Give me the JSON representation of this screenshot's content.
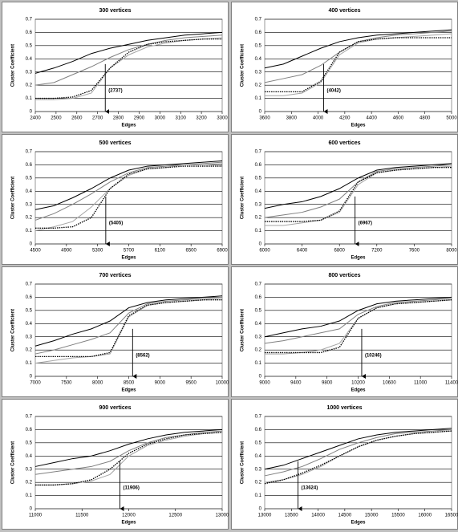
{
  "chart_data": [
    {
      "type": "line",
      "title": "300 vertices",
      "x_label": "Edges",
      "y_label": "Cluster Coefficient",
      "x": [
        2400,
        2490,
        2580,
        2670,
        2760,
        2850,
        2940,
        3030,
        3120,
        3210,
        3300
      ],
      "xlim": [
        2400,
        3300
      ],
      "xticks": [
        2400,
        2500,
        2600,
        2700,
        2800,
        2900,
        3000,
        3100,
        3200,
        3300
      ],
      "ylim": [
        0,
        0.7
      ],
      "yticks": [
        0,
        0.1,
        0.2,
        0.3,
        0.4,
        0.5,
        0.6,
        0.7
      ],
      "grid": true,
      "series": [
        {
          "color": "#000000",
          "style": "solid",
          "values": [
            0.29,
            0.33,
            0.38,
            0.44,
            0.48,
            0.51,
            0.54,
            0.56,
            0.58,
            0.59,
            0.6
          ]
        },
        {
          "color": "#808080",
          "style": "solid",
          "values": [
            0.2,
            0.22,
            0.28,
            0.34,
            0.41,
            0.47,
            0.51,
            0.54,
            0.56,
            0.57,
            0.58
          ]
        },
        {
          "color": "#a6a6a6",
          "style": "solid",
          "values": [
            0.09,
            0.09,
            0.1,
            0.14,
            0.33,
            0.43,
            0.49,
            0.52,
            0.54,
            0.55,
            0.56
          ]
        },
        {
          "color": "#000000",
          "style": "dotted",
          "values": [
            0.1,
            0.1,
            0.11,
            0.16,
            0.33,
            0.45,
            0.51,
            0.53,
            0.54,
            0.55,
            0.55
          ]
        }
      ],
      "annotations": [
        {
          "label": "(2737)",
          "value": 2737
        }
      ]
    },
    {
      "type": "line",
      "title": "400 vertices",
      "x_label": "Edges",
      "y_label": "Cluster Coefficient",
      "x": [
        3600,
        3740,
        3880,
        4020,
        4160,
        4300,
        4440,
        4580,
        4720,
        4860,
        5000
      ],
      "xlim": [
        3600,
        5000
      ],
      "xticks": [
        3600,
        3800,
        4000,
        4200,
        4400,
        4600,
        4800,
        5000
      ],
      "ylim": [
        0,
        0.7
      ],
      "yticks": [
        0,
        0.1,
        0.2,
        0.3,
        0.4,
        0.5,
        0.6,
        0.7
      ],
      "grid": true,
      "series": [
        {
          "color": "#000000",
          "style": "solid",
          "values": [
            0.33,
            0.36,
            0.42,
            0.48,
            0.53,
            0.56,
            0.58,
            0.59,
            0.6,
            0.61,
            0.62
          ]
        },
        {
          "color": "#808080",
          "style": "solid",
          "values": [
            0.22,
            0.25,
            0.28,
            0.35,
            0.45,
            0.53,
            0.56,
            0.58,
            0.59,
            0.6,
            0.61
          ]
        },
        {
          "color": "#a6a6a6",
          "style": "solid",
          "values": [
            0.12,
            0.12,
            0.14,
            0.22,
            0.43,
            0.52,
            0.55,
            0.56,
            0.57,
            0.58,
            0.59
          ]
        },
        {
          "color": "#000000",
          "style": "dotted",
          "values": [
            0.15,
            0.15,
            0.15,
            0.23,
            0.45,
            0.53,
            0.55,
            0.56,
            0.56,
            0.56,
            0.56
          ]
        }
      ],
      "annotations": [
        {
          "label": "(4042)",
          "value": 4042
        }
      ]
    },
    {
      "type": "line",
      "title": "500 vertices",
      "x_label": "Edges",
      "y_label": "Cluster Coefficient",
      "x": [
        4500,
        4740,
        4980,
        5220,
        5460,
        5700,
        5940,
        6180,
        6420,
        6660,
        6900
      ],
      "xlim": [
        4500,
        6900
      ],
      "xticks": [
        4500,
        4900,
        5300,
        5700,
        6100,
        6500,
        6900
      ],
      "ylim": [
        0,
        0.7
      ],
      "yticks": [
        0,
        0.1,
        0.2,
        0.3,
        0.4,
        0.5,
        0.6,
        0.7
      ],
      "grid": true,
      "series": [
        {
          "color": "#000000",
          "style": "solid",
          "values": [
            0.26,
            0.29,
            0.35,
            0.42,
            0.5,
            0.56,
            0.59,
            0.6,
            0.61,
            0.62,
            0.63
          ]
        },
        {
          "color": "#808080",
          "style": "solid",
          "values": [
            0.18,
            0.23,
            0.3,
            0.38,
            0.47,
            0.54,
            0.58,
            0.59,
            0.6,
            0.61,
            0.62
          ]
        },
        {
          "color": "#a6a6a6",
          "style": "solid",
          "values": [
            0.1,
            0.13,
            0.17,
            0.28,
            0.42,
            0.52,
            0.57,
            0.58,
            0.6,
            0.6,
            0.61
          ]
        },
        {
          "color": "#000000",
          "style": "dotted",
          "values": [
            0.12,
            0.12,
            0.13,
            0.2,
            0.42,
            0.53,
            0.57,
            0.58,
            0.59,
            0.59,
            0.59
          ]
        }
      ],
      "annotations": [
        {
          "label": "(5405)",
          "value": 5405
        }
      ]
    },
    {
      "type": "line",
      "title": "600 vertices",
      "x_label": "Edges",
      "y_label": "Cluster Coefficient",
      "x": [
        6000,
        6200,
        6400,
        6600,
        6800,
        7000,
        7200,
        7400,
        7600,
        7800,
        8000
      ],
      "xlim": [
        6000,
        8000
      ],
      "xticks": [
        6000,
        6400,
        6800,
        7200,
        7600,
        8000
      ],
      "ylim": [
        0,
        0.7
      ],
      "yticks": [
        0,
        0.1,
        0.2,
        0.3,
        0.4,
        0.5,
        0.6,
        0.7
      ],
      "grid": true,
      "series": [
        {
          "color": "#000000",
          "style": "solid",
          "values": [
            0.27,
            0.3,
            0.32,
            0.36,
            0.42,
            0.5,
            0.56,
            0.58,
            0.59,
            0.6,
            0.61
          ]
        },
        {
          "color": "#808080",
          "style": "solid",
          "values": [
            0.2,
            0.22,
            0.24,
            0.28,
            0.34,
            0.47,
            0.55,
            0.57,
            0.58,
            0.59,
            0.6
          ]
        },
        {
          "color": "#a6a6a6",
          "style": "solid",
          "values": [
            0.14,
            0.14,
            0.16,
            0.18,
            0.24,
            0.45,
            0.54,
            0.56,
            0.57,
            0.58,
            0.59
          ]
        },
        {
          "color": "#000000",
          "style": "dotted",
          "values": [
            0.17,
            0.17,
            0.17,
            0.18,
            0.25,
            0.47,
            0.54,
            0.56,
            0.57,
            0.58,
            0.58
          ]
        }
      ],
      "annotations": [
        {
          "label": "(6967)",
          "value": 6967
        }
      ]
    },
    {
      "type": "line",
      "title": "700 vertices",
      "x_label": "Edges",
      "y_label": "Cluster Coefficient",
      "x": [
        7000,
        7300,
        7600,
        7900,
        8200,
        8500,
        8800,
        9100,
        9400,
        9700,
        10000
      ],
      "xlim": [
        7000,
        10000
      ],
      "xticks": [
        7000,
        7500,
        8000,
        8500,
        9000,
        9500,
        10000
      ],
      "ylim": [
        0,
        0.7
      ],
      "yticks": [
        0,
        0.1,
        0.2,
        0.3,
        0.4,
        0.5,
        0.6,
        0.7
      ],
      "grid": true,
      "series": [
        {
          "color": "#000000",
          "style": "solid",
          "values": [
            0.23,
            0.27,
            0.32,
            0.36,
            0.42,
            0.52,
            0.56,
            0.58,
            0.59,
            0.6,
            0.61
          ]
        },
        {
          "color": "#808080",
          "style": "solid",
          "values": [
            0.17,
            0.2,
            0.24,
            0.28,
            0.33,
            0.48,
            0.55,
            0.57,
            0.58,
            0.59,
            0.6
          ]
        },
        {
          "color": "#a6a6a6",
          "style": "solid",
          "values": [
            0.1,
            0.12,
            0.14,
            0.15,
            0.17,
            0.45,
            0.54,
            0.56,
            0.57,
            0.58,
            0.59
          ]
        },
        {
          "color": "#000000",
          "style": "dotted",
          "values": [
            0.15,
            0.15,
            0.15,
            0.15,
            0.18,
            0.46,
            0.54,
            0.56,
            0.57,
            0.58,
            0.58
          ]
        }
      ],
      "annotations": [
        {
          "label": "(8562)",
          "value": 8562
        }
      ]
    },
    {
      "type": "line",
      "title": "800 vertices",
      "x_label": "Edges",
      "y_label": "Cluster Coefficient",
      "x": [
        9000,
        9240,
        9480,
        9720,
        9960,
        10200,
        10440,
        10680,
        10920,
        11160,
        11400
      ],
      "xlim": [
        9000,
        11400
      ],
      "xticks": [
        9000,
        9400,
        9800,
        10200,
        10600,
        11000,
        11400
      ],
      "ylim": [
        0,
        0.7
      ],
      "yticks": [
        0,
        0.1,
        0.2,
        0.3,
        0.4,
        0.5,
        0.6,
        0.7
      ],
      "grid": true,
      "series": [
        {
          "color": "#000000",
          "style": "solid",
          "values": [
            0.3,
            0.33,
            0.36,
            0.38,
            0.42,
            0.5,
            0.55,
            0.57,
            0.58,
            0.59,
            0.6
          ]
        },
        {
          "color": "#808080",
          "style": "solid",
          "values": [
            0.25,
            0.27,
            0.3,
            0.33,
            0.36,
            0.47,
            0.53,
            0.56,
            0.57,
            0.58,
            0.59
          ]
        },
        {
          "color": "#a6a6a6",
          "style": "solid",
          "values": [
            0.17,
            0.17,
            0.18,
            0.2,
            0.25,
            0.44,
            0.52,
            0.55,
            0.56,
            0.57,
            0.58
          ]
        },
        {
          "color": "#000000",
          "style": "dotted",
          "values": [
            0.18,
            0.18,
            0.18,
            0.18,
            0.22,
            0.44,
            0.52,
            0.55,
            0.56,
            0.57,
            0.58
          ]
        }
      ],
      "annotations": [
        {
          "label": "(10246)",
          "value": 10246
        }
      ]
    },
    {
      "type": "line",
      "title": "900 vertices",
      "x_label": "Edges",
      "y_label": "Cluster Coefficient",
      "x": [
        11000,
        11200,
        11400,
        11600,
        11800,
        12000,
        12200,
        12400,
        12600,
        12800,
        13000
      ],
      "xlim": [
        11000,
        13000
      ],
      "xticks": [
        11000,
        11500,
        12000,
        12500,
        13000
      ],
      "ylim": [
        0,
        0.7
      ],
      "yticks": [
        0,
        0.1,
        0.2,
        0.3,
        0.4,
        0.5,
        0.6,
        0.7
      ],
      "grid": true,
      "series": [
        {
          "color": "#000000",
          "style": "solid",
          "values": [
            0.32,
            0.35,
            0.38,
            0.4,
            0.44,
            0.49,
            0.53,
            0.56,
            0.58,
            0.59,
            0.6
          ]
        },
        {
          "color": "#808080",
          "style": "solid",
          "values": [
            0.26,
            0.28,
            0.3,
            0.32,
            0.36,
            0.44,
            0.5,
            0.54,
            0.56,
            0.58,
            0.59
          ]
        },
        {
          "color": "#a6a6a6",
          "style": "solid",
          "values": [
            0.18,
            0.18,
            0.19,
            0.21,
            0.26,
            0.4,
            0.48,
            0.52,
            0.55,
            0.57,
            0.58
          ]
        },
        {
          "color": "#000000",
          "style": "dotted",
          "values": [
            0.18,
            0.18,
            0.19,
            0.22,
            0.3,
            0.42,
            0.49,
            0.53,
            0.56,
            0.57,
            0.58
          ]
        }
      ],
      "annotations": [
        {
          "label": "(11906)",
          "value": 11906
        }
      ]
    },
    {
      "type": "line",
      "title": "1000 vertices",
      "x_label": "Edges",
      "y_label": "Cluster Coefficient",
      "x": [
        13000,
        13350,
        13700,
        14050,
        14400,
        14750,
        15100,
        15450,
        15800,
        16150,
        16500
      ],
      "xlim": [
        13000,
        16500
      ],
      "xticks": [
        13000,
        13500,
        14000,
        14500,
        15000,
        15500,
        16000,
        16500
      ],
      "ylim": [
        0,
        0.7
      ],
      "yticks": [
        0,
        0.1,
        0.2,
        0.3,
        0.4,
        0.5,
        0.6,
        0.7
      ],
      "grid": true,
      "series": [
        {
          "color": "#000000",
          "style": "solid",
          "values": [
            0.3,
            0.33,
            0.38,
            0.43,
            0.48,
            0.53,
            0.56,
            0.58,
            0.59,
            0.6,
            0.61
          ]
        },
        {
          "color": "#808080",
          "style": "solid",
          "values": [
            0.25,
            0.28,
            0.32,
            0.38,
            0.45,
            0.5,
            0.54,
            0.57,
            0.58,
            0.59,
            0.6
          ]
        },
        {
          "color": "#a6a6a6",
          "style": "solid",
          "values": [
            0.2,
            0.22,
            0.26,
            0.32,
            0.4,
            0.47,
            0.52,
            0.55,
            0.57,
            0.58,
            0.59
          ]
        },
        {
          "color": "#000000",
          "style": "dotted",
          "values": [
            0.19,
            0.22,
            0.27,
            0.33,
            0.4,
            0.47,
            0.52,
            0.55,
            0.57,
            0.58,
            0.59
          ]
        }
      ],
      "annotations": [
        {
          "label": "(13624)",
          "value": 13624
        }
      ]
    }
  ]
}
